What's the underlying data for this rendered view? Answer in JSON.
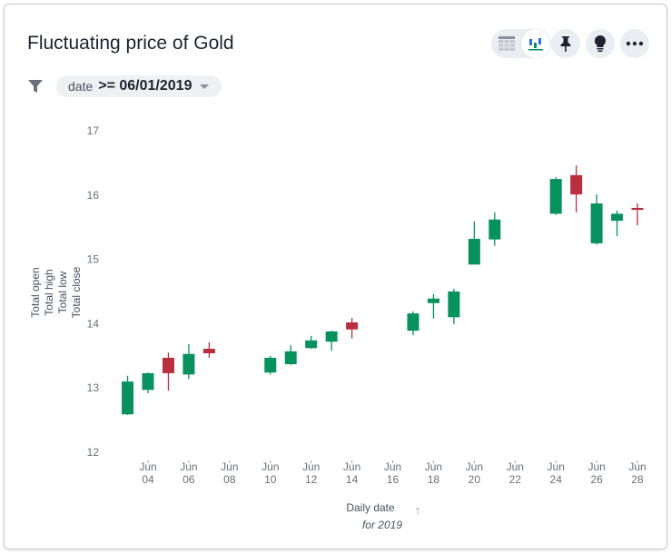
{
  "header": {
    "title": "Fluctuating price of Gold"
  },
  "toolbar": {
    "view_toggle": [
      {
        "icon": "table-icon",
        "active": false
      },
      {
        "icon": "chart-icon",
        "active": true
      }
    ],
    "buttons": [
      {
        "icon": "pin-icon"
      },
      {
        "icon": "lightbulb-icon"
      },
      {
        "icon": "more-icon"
      }
    ]
  },
  "filter": {
    "field": "date",
    "operator_value": ">= 06/01/2019"
  },
  "colors": {
    "up": "#07915f",
    "down": "#b8303f"
  },
  "chart_data": {
    "type": "candlestick",
    "title": "",
    "xlabel": "Daily date",
    "xlabel_sub": "for 2019",
    "sort_indicator": "↑",
    "ylabels": [
      "Total open",
      "Total high",
      "Total low",
      "Total close"
    ],
    "ylim": [
      12,
      17
    ],
    "yticks": [
      "12",
      "13",
      "14",
      "15",
      "16",
      "17"
    ],
    "xticks": [
      {
        "date": "2019-06-04",
        "month": "Jun",
        "day": "04"
      },
      {
        "date": "2019-06-06",
        "month": "Jun",
        "day": "06"
      },
      {
        "date": "2019-06-08",
        "month": "Jun",
        "day": "08"
      },
      {
        "date": "2019-06-10",
        "month": "Jun",
        "day": "10"
      },
      {
        "date": "2019-06-12",
        "month": "Jun",
        "day": "12"
      },
      {
        "date": "2019-06-14",
        "month": "Jun",
        "day": "14"
      },
      {
        "date": "2019-06-16",
        "month": "Jun",
        "day": "16"
      },
      {
        "date": "2019-06-18",
        "month": "Jun",
        "day": "18"
      },
      {
        "date": "2019-06-20",
        "month": "Jun",
        "day": "20"
      },
      {
        "date": "2019-06-22",
        "month": "Jun",
        "day": "22"
      },
      {
        "date": "2019-06-24",
        "month": "Jun",
        "day": "24"
      },
      {
        "date": "2019-06-26",
        "month": "Jun",
        "day": "26"
      },
      {
        "date": "2019-06-28",
        "month": "Jun",
        "day": "28"
      }
    ],
    "grid": false,
    "candles": [
      {
        "date": "2019-06-03",
        "open": 12.59,
        "high": 13.19,
        "low": 12.58,
        "close": 13.1
      },
      {
        "date": "2019-06-04",
        "open": 12.97,
        "high": 13.24,
        "low": 12.92,
        "close": 13.23
      },
      {
        "date": "2019-06-05",
        "open": 13.47,
        "high": 13.55,
        "low": 12.96,
        "close": 13.23
      },
      {
        "date": "2019-06-06",
        "open": 13.21,
        "high": 13.68,
        "low": 13.14,
        "close": 13.53
      },
      {
        "date": "2019-06-07",
        "open": 13.61,
        "high": 13.71,
        "low": 13.47,
        "close": 13.54
      },
      {
        "date": "2019-06-10",
        "open": 13.24,
        "high": 13.5,
        "low": 13.21,
        "close": 13.47
      },
      {
        "date": "2019-06-11",
        "open": 13.37,
        "high": 13.67,
        "low": 13.36,
        "close": 13.57
      },
      {
        "date": "2019-06-12",
        "open": 13.62,
        "high": 13.81,
        "low": 13.61,
        "close": 13.74
      },
      {
        "date": "2019-06-13",
        "open": 13.72,
        "high": 13.89,
        "low": 13.58,
        "close": 13.88
      },
      {
        "date": "2019-06-14",
        "open": 14.02,
        "high": 14.09,
        "low": 13.77,
        "close": 13.91
      },
      {
        "date": "2019-06-17",
        "open": 13.89,
        "high": 14.19,
        "low": 13.82,
        "close": 14.16
      },
      {
        "date": "2019-06-18",
        "open": 14.32,
        "high": 14.46,
        "low": 14.08,
        "close": 14.39
      },
      {
        "date": "2019-06-19",
        "open": 14.1,
        "high": 14.54,
        "low": 13.99,
        "close": 14.5
      },
      {
        "date": "2019-06-20",
        "open": 14.92,
        "high": 15.59,
        "low": 14.92,
        "close": 15.32
      },
      {
        "date": "2019-06-21",
        "open": 15.31,
        "high": 15.73,
        "low": 15.21,
        "close": 15.62
      },
      {
        "date": "2019-06-24",
        "open": 15.71,
        "high": 16.28,
        "low": 15.69,
        "close": 16.25
      },
      {
        "date": "2019-06-25",
        "open": 16.31,
        "high": 16.46,
        "low": 15.73,
        "close": 16.01
      },
      {
        "date": "2019-06-26",
        "open": 15.25,
        "high": 16.01,
        "low": 15.23,
        "close": 15.87
      },
      {
        "date": "2019-06-27",
        "open": 15.6,
        "high": 15.76,
        "low": 15.36,
        "close": 15.71
      },
      {
        "date": "2019-06-28",
        "open": 15.8,
        "high": 15.87,
        "low": 15.53,
        "close": 15.77
      }
    ]
  }
}
